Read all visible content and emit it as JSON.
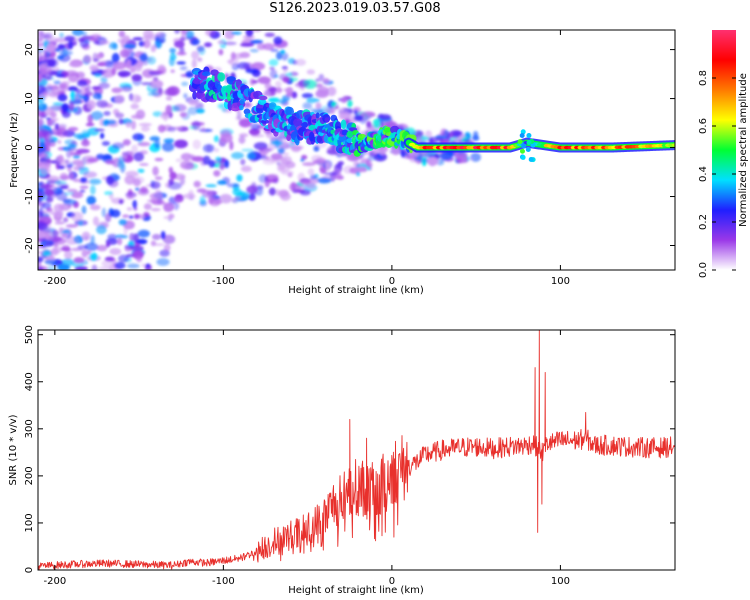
{
  "figure": {
    "title": "S126.2023.019.03.57.G08"
  },
  "chart_data": [
    {
      "type": "heatmap",
      "title": "S126.2023.019.03.57.G08",
      "xlabel": "Height of straight line (km)",
      "ylabel": "Frequency (Hz)",
      "xlim": [
        -210,
        168
      ],
      "ylim": [
        -25,
        24
      ],
      "xticks": [
        -200,
        -100,
        0,
        100
      ],
      "yticks": [
        -20,
        -10,
        0,
        10,
        20
      ],
      "xtick_labels": [
        "-200",
        "-100",
        "0",
        "100"
      ],
      "ytick_labels": [
        "-20",
        "-10",
        "0",
        "10",
        "20"
      ],
      "colorbar": {
        "label": "Normalized spectral amplitude",
        "range": [
          0,
          1
        ],
        "ticks": [
          0.0,
          0.2,
          0.4,
          0.6,
          0.8
        ],
        "tick_labels": [
          "0.0",
          "0.2",
          "0.4",
          "0.6",
          "0.8"
        ],
        "colors": [
          "#ffffff",
          "#9a38e8",
          "#1f1fff",
          "#00e0ff",
          "#00ff33",
          "#ffff00",
          "#ff7a00",
          "#ff0000",
          "#ff3070"
        ]
      },
      "dominant_ridge": {
        "x": [
          -115,
          -100,
          -85,
          -70,
          -55,
          -40,
          -25,
          -15,
          -5,
          5,
          15,
          40,
          70,
          80,
          100,
          130,
          168
        ],
        "frequency": [
          13,
          12,
          9,
          6,
          4,
          4,
          1.5,
          1,
          2.5,
          2,
          0,
          0,
          0,
          1,
          0,
          0,
          0.5
        ],
        "amplitude": [
          0.3,
          0.35,
          0.3,
          0.3,
          0.3,
          0.3,
          0.4,
          0.5,
          0.55,
          0.5,
          0.9,
          0.95,
          0.9,
          0.3,
          0.95,
          0.9,
          0.7
        ]
      },
      "grid": false
    },
    {
      "type": "line",
      "xlabel": "Height of straight line (km)",
      "ylabel": "SNR (10 * v/v)",
      "xlim": [
        -210,
        168
      ],
      "ylim": [
        0,
        510
      ],
      "xticks": [
        -200,
        -100,
        0,
        100
      ],
      "yticks": [
        0,
        100,
        200,
        300,
        400,
        500
      ],
      "xtick_labels": [
        "-200",
        "-100",
        "0",
        "100"
      ],
      "ytick_labels": [
        "0",
        "100",
        "200",
        "300",
        "400",
        "500"
      ],
      "color": "#e8302c",
      "grid": false,
      "series": [
        {
          "x": [
            -210,
            -190,
            -170,
            -150,
            -130,
            -120,
            -110,
            -100,
            -90,
            -80,
            -70,
            -60,
            -50,
            -40,
            -35,
            -30,
            -25,
            -20,
            -15,
            -10,
            -5,
            0,
            5,
            10,
            15,
            20,
            30,
            40,
            50,
            60,
            70,
            80,
            84,
            86,
            88,
            90,
            92,
            95,
            100,
            110,
            115,
            120,
            130,
            140,
            150,
            160,
            168
          ],
          "values": [
            8,
            12,
            14,
            12,
            10,
            18,
            15,
            20,
            25,
            40,
            60,
            70,
            80,
            110,
            140,
            150,
            170,
            180,
            170,
            160,
            180,
            210,
            215,
            220,
            230,
            245,
            255,
            260,
            262,
            258,
            262,
            265,
            270,
            260,
            255,
            250,
            270,
            270,
            275,
            275,
            280,
            265,
            265,
            262,
            260,
            260,
            262
          ],
          "spikes": [
            {
              "x": -25,
              "value": 320
            },
            {
              "x": -15,
              "value": 280
            },
            {
              "x": 85,
              "value": 430
            },
            {
              "x": 86.5,
              "value": 80
            },
            {
              "x": 87.5,
              "value": 510
            },
            {
              "x": 89,
              "value": 140
            },
            {
              "x": 91,
              "value": 420
            },
            {
              "x": 115,
              "value": 335
            }
          ]
        }
      ]
    }
  ]
}
